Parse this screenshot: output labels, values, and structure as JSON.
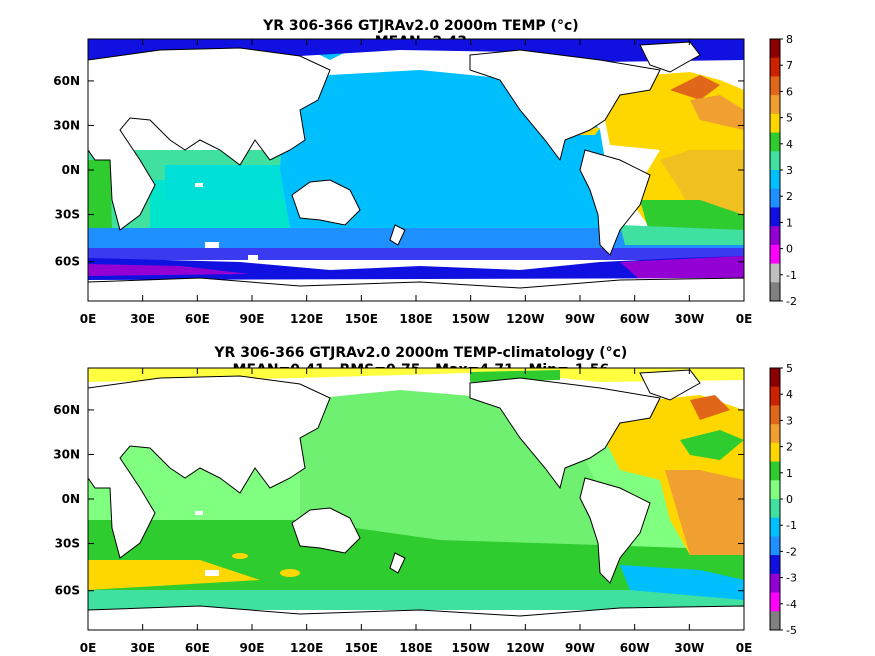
{
  "panels": [
    {
      "title": "YR 306-366 GTJRAv2.0 2000m TEMP (°c)",
      "subtitle": "MEAN=2.43",
      "colorbar_labels": [
        "8",
        "7",
        "6",
        "5",
        "4",
        "3",
        "2",
        "1",
        "0",
        "-1",
        "-2"
      ],
      "colorbar_colors": [
        "#8b0000",
        "#cc2200",
        "#e0661a",
        "#f0a030",
        "#ffd700",
        "#2ecc2e",
        "#40e0a0",
        "#00bfff",
        "#1e90ff",
        "#1010e0",
        "#9400d3",
        "#ff00ff",
        "#c0c0c0",
        "#808080"
      ]
    },
    {
      "title": "YR 306-366 GTJRAv2.0 2000m TEMP-climatology (°c)",
      "subtitle": "MEAN=0.41   RMS=0.75   Max=4.71   Min=-1.56",
      "colorbar_labels": [
        "5",
        "4",
        "3",
        "2",
        "1",
        "0",
        "-1",
        "-2",
        "-3",
        "-4",
        "-5"
      ],
      "colorbar_colors": [
        "#8b0000",
        "#cc2200",
        "#e0661a",
        "#f0a030",
        "#ffd700",
        "#2ecc2e",
        "#80ff80",
        "#40e0a0",
        "#00bfff",
        "#1e90ff",
        "#1010e0",
        "#9400d3",
        "#ff00ff",
        "#808080"
      ]
    }
  ],
  "lat_labels": [
    "60N",
    "30N",
    "0N",
    "30S",
    "60S"
  ],
  "lon_labels": [
    "0E",
    "30E",
    "60E",
    "90E",
    "120E",
    "150E",
    "180E",
    "150W",
    "120W",
    "90W",
    "60W",
    "30W",
    "0E"
  ]
}
